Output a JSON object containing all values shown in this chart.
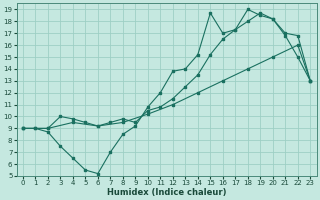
{
  "xlabel": "Humidex (Indice chaleur)",
  "bg_color": "#c5e8e0",
  "grid_color": "#9ecfc5",
  "line_color": "#1a7060",
  "xlim": [
    -0.5,
    23.5
  ],
  "ylim": [
    5,
    19.5
  ],
  "xticks": [
    0,
    1,
    2,
    3,
    4,
    5,
    6,
    7,
    8,
    9,
    10,
    11,
    12,
    13,
    14,
    15,
    16,
    17,
    18,
    19,
    20,
    21,
    22,
    23
  ],
  "yticks": [
    5,
    6,
    7,
    8,
    9,
    10,
    11,
    12,
    13,
    14,
    15,
    16,
    17,
    18,
    19
  ],
  "line1_x": [
    0,
    1,
    2,
    3,
    4,
    5,
    6,
    7,
    8,
    9,
    10,
    11,
    12,
    13,
    14,
    15,
    16,
    17,
    18,
    19,
    20,
    21,
    22,
    23
  ],
  "line1_y": [
    9,
    9,
    8.7,
    7.5,
    6.5,
    5.5,
    5.2,
    7.0,
    8.5,
    9.2,
    10.8,
    12.0,
    13.8,
    14.0,
    15.2,
    18.7,
    17.0,
    17.3,
    19.0,
    18.5,
    18.2,
    16.8,
    15.0,
    13.0
  ],
  "line2_x": [
    0,
    1,
    2,
    3,
    4,
    5,
    6,
    7,
    8,
    9,
    10,
    11,
    12,
    13,
    14,
    15,
    16,
    17,
    18,
    19,
    20,
    21,
    22,
    23
  ],
  "line2_y": [
    9,
    9,
    9.0,
    10.0,
    9.8,
    9.5,
    9.2,
    9.5,
    9.8,
    9.5,
    10.5,
    10.8,
    11.5,
    12.5,
    13.5,
    15.2,
    16.5,
    17.3,
    18.0,
    18.7,
    18.2,
    17.0,
    16.8,
    13.0
  ],
  "line3_x": [
    0,
    2,
    4,
    6,
    8,
    10,
    12,
    14,
    16,
    18,
    20,
    22,
    23
  ],
  "line3_y": [
    9,
    9,
    9.5,
    9.2,
    9.5,
    10.2,
    11.0,
    12.0,
    13.0,
    14.0,
    15.0,
    16.0,
    13.0
  ]
}
